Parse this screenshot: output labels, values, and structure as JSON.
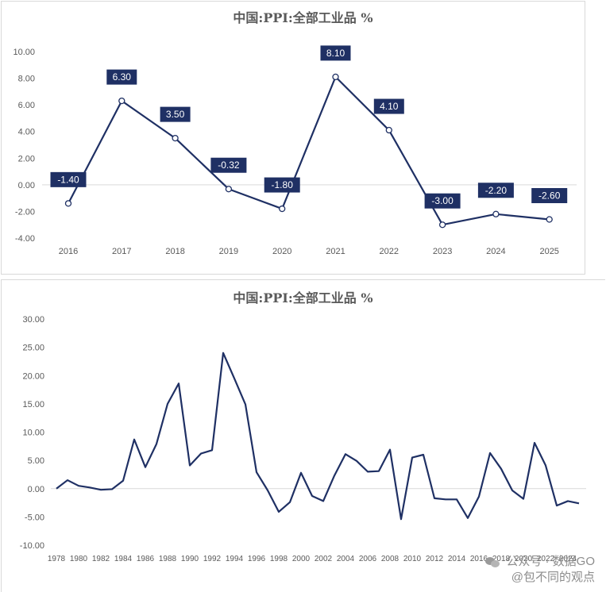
{
  "chart_data": [
    {
      "type": "line",
      "title": "中国:PPI:全部工业品 %",
      "xlabel": "",
      "ylabel": "",
      "categories": [
        "2016",
        "2017",
        "2018",
        "2019",
        "2020",
        "2021",
        "2022",
        "2023",
        "2024",
        "2025"
      ],
      "series": [
        {
          "name": "中国:PPI:全部工业品",
          "values": [
            -1.4,
            6.3,
            3.5,
            -0.32,
            -1.8,
            8.1,
            4.1,
            -3.0,
            -2.2,
            -2.6
          ],
          "data_labels": [
            "-1.40",
            "6.30",
            "3.50",
            "-0.32",
            "-1.80",
            "8.10",
            "4.10",
            "-3.00",
            "-2.20",
            "-2.60"
          ]
        }
      ],
      "ylim": [
        -4,
        10
      ],
      "yticks": [
        "10.00",
        "8.00",
        "6.00",
        "4.00",
        "2.00",
        "0.00",
        "-2.00",
        "-4.00"
      ],
      "grid": false,
      "line_color": "#1f3064",
      "label_bg": "#1f3064"
    },
    {
      "type": "line",
      "title": "中国:PPI:全部工业品 %",
      "xlabel": "",
      "ylabel": "",
      "x": [
        1978,
        1979,
        1980,
        1981,
        1982,
        1983,
        1984,
        1985,
        1986,
        1987,
        1988,
        1989,
        1990,
        1991,
        1992,
        1993,
        1994,
        1995,
        1996,
        1997,
        1998,
        1999,
        2000,
        2001,
        2002,
        2003,
        2004,
        2005,
        2006,
        2007,
        2008,
        2009,
        2010,
        2011,
        2012,
        2013,
        2014,
        2015,
        2016,
        2017,
        2018,
        2019,
        2020,
        2021,
        2022,
        2023,
        2024,
        2025
      ],
      "xticks": [
        "1978",
        "1980",
        "1982",
        "1984",
        "1986",
        "1988",
        "1990",
        "1992",
        "1994",
        "1996",
        "1998",
        "2000",
        "2002",
        "2004",
        "2006",
        "2008",
        "2010",
        "2012",
        "2014",
        "2016",
        "2018",
        "2020",
        "2022",
        "2024"
      ],
      "series": [
        {
          "name": "中国:PPI:全部工业品",
          "values": [
            0.0,
            1.5,
            0.5,
            0.2,
            -0.2,
            -0.1,
            1.4,
            8.7,
            3.8,
            7.9,
            15.0,
            18.6,
            4.1,
            6.2,
            6.8,
            24.0,
            19.5,
            14.9,
            2.9,
            -0.3,
            -4.1,
            -2.4,
            2.8,
            -1.3,
            -2.2,
            2.3,
            6.1,
            4.9,
            3.0,
            3.1,
            6.9,
            -5.4,
            5.5,
            6.0,
            -1.7,
            -1.9,
            -1.9,
            -5.2,
            -1.4,
            6.3,
            3.5,
            -0.32,
            -1.8,
            8.1,
            4.1,
            -3.0,
            -2.2,
            -2.6
          ]
        }
      ],
      "ylim": [
        -10,
        30
      ],
      "yticks": [
        "30.00",
        "25.00",
        "20.00",
        "15.00",
        "10.00",
        "5.00",
        "0.00",
        "-5.00",
        "-10.00"
      ],
      "grid": false,
      "line_color": "#1f3064"
    }
  ],
  "watermark": {
    "line1": "公众号 · 数据GO",
    "line2": "@包不同的观点"
  }
}
